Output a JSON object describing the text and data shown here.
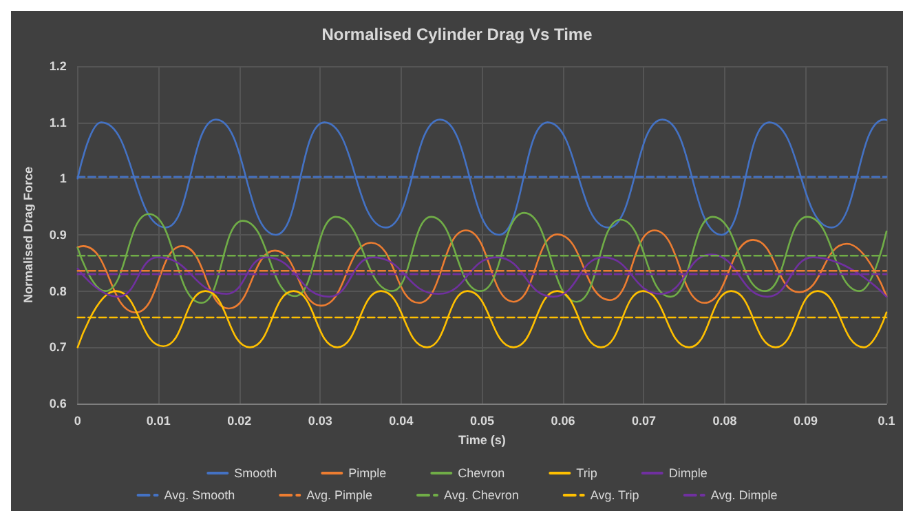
{
  "chart_data": {
    "type": "line",
    "title": "Normalised Cylinder Drag Vs Time",
    "xlabel": "Time (s)",
    "ylabel": "Normalised Drag Force",
    "xlim": [
      0,
      0.1
    ],
    "xticks": [
      0,
      0.01,
      0.02,
      0.03,
      0.04,
      0.05,
      0.06,
      0.07,
      0.08,
      0.09,
      0.1
    ],
    "ylim": [
      0.6,
      1.2
    ],
    "yticks": [
      0.6,
      0.7,
      0.8,
      0.9,
      1,
      1.1,
      1.2
    ],
    "grid": true,
    "legend": "bottom",
    "marker": "none",
    "line_style": "solid",
    "series": [
      {
        "name": "Smooth",
        "color": "#4472c4",
        "x": [
          0,
          0.0029,
          0.0109,
          0.0171,
          0.0245,
          0.0305,
          0.0381,
          0.0448,
          0.0521,
          0.0581,
          0.0656,
          0.0723,
          0.0796,
          0.0855,
          0.0932,
          0.0997,
          0.1
        ],
        "values": [
          1.0,
          1.1,
          0.913,
          1.105,
          0.9,
          1.1,
          0.913,
          1.105,
          0.9,
          1.1,
          0.913,
          1.105,
          0.9,
          1.1,
          0.913,
          1.105,
          1.104
        ]
      },
      {
        "name": "Pimple",
        "color": "#ed7d31",
        "x": [
          0,
          0.0007,
          0.0072,
          0.0129,
          0.0187,
          0.0244,
          0.0301,
          0.0363,
          0.0422,
          0.048,
          0.0539,
          0.0593,
          0.0658,
          0.0713,
          0.0775,
          0.0835,
          0.0892,
          0.0951,
          0.1
        ],
        "values": [
          0.878,
          0.88,
          0.762,
          0.88,
          0.769,
          0.872,
          0.774,
          0.886,
          0.779,
          0.908,
          0.781,
          0.901,
          0.784,
          0.908,
          0.779,
          0.891,
          0.798,
          0.884,
          0.791
        ]
      },
      {
        "name": "Chevron",
        "color": "#70ad47",
        "x": [
          0,
          0.0034,
          0.0088,
          0.0153,
          0.0204,
          0.0269,
          0.0319,
          0.0389,
          0.0437,
          0.0498,
          0.0552,
          0.0617,
          0.0671,
          0.0733,
          0.0785,
          0.085,
          0.0902,
          0.0967,
          0.1
        ],
        "values": [
          0.877,
          0.8,
          0.937,
          0.779,
          0.925,
          0.791,
          0.932,
          0.8,
          0.932,
          0.8,
          0.939,
          0.781,
          0.927,
          0.79,
          0.932,
          0.8,
          0.932,
          0.8,
          0.906
        ]
      },
      {
        "name": "Trip",
        "color": "#ffc000",
        "x": [
          0,
          0.0047,
          0.0106,
          0.0158,
          0.0213,
          0.0267,
          0.0321,
          0.0375,
          0.0432,
          0.0482,
          0.0539,
          0.0593,
          0.0647,
          0.0699,
          0.0756,
          0.0808,
          0.0863,
          0.0915,
          0.0972,
          0.1
        ],
        "values": [
          0.7,
          0.8,
          0.702,
          0.8,
          0.7,
          0.8,
          0.7,
          0.8,
          0.7,
          0.8,
          0.7,
          0.8,
          0.7,
          0.8,
          0.7,
          0.8,
          0.7,
          0.8,
          0.7,
          0.762
        ]
      },
      {
        "name": "Dimple",
        "color": "#7030a0",
        "x": [
          0,
          0.005,
          0.0099,
          0.0184,
          0.0233,
          0.0311,
          0.0365,
          0.0446,
          0.0518,
          0.0588,
          0.065,
          0.0721,
          0.0783,
          0.0853,
          0.0909,
          0.1
        ],
        "values": [
          0.84,
          0.79,
          0.86,
          0.795,
          0.86,
          0.79,
          0.86,
          0.795,
          0.86,
          0.79,
          0.86,
          0.795,
          0.865,
          0.79,
          0.86,
          0.79
        ]
      },
      {
        "name": "Avg. Smooth",
        "color": "#4472c4",
        "line_style": "dashed",
        "x": [
          0,
          0.1
        ],
        "values": [
          1.003,
          1.003
        ]
      },
      {
        "name": "Avg. Pimple",
        "color": "#ed7d31",
        "line_style": "dashed",
        "x": [
          0,
          0.1
        ],
        "values": [
          0.836,
          0.836
        ]
      },
      {
        "name": "Avg. Chevron",
        "color": "#70ad47",
        "line_style": "dashed",
        "x": [
          0,
          0.1
        ],
        "values": [
          0.863,
          0.863
        ]
      },
      {
        "name": "Avg. Trip",
        "color": "#ffc000",
        "line_style": "dashed",
        "x": [
          0,
          0.1
        ],
        "values": [
          0.753,
          0.753
        ]
      },
      {
        "name": "Avg. Dimple",
        "color": "#7030a0",
        "line_style": "dashed",
        "x": [
          0,
          0.1
        ],
        "values": [
          0.83,
          0.83
        ]
      }
    ]
  }
}
